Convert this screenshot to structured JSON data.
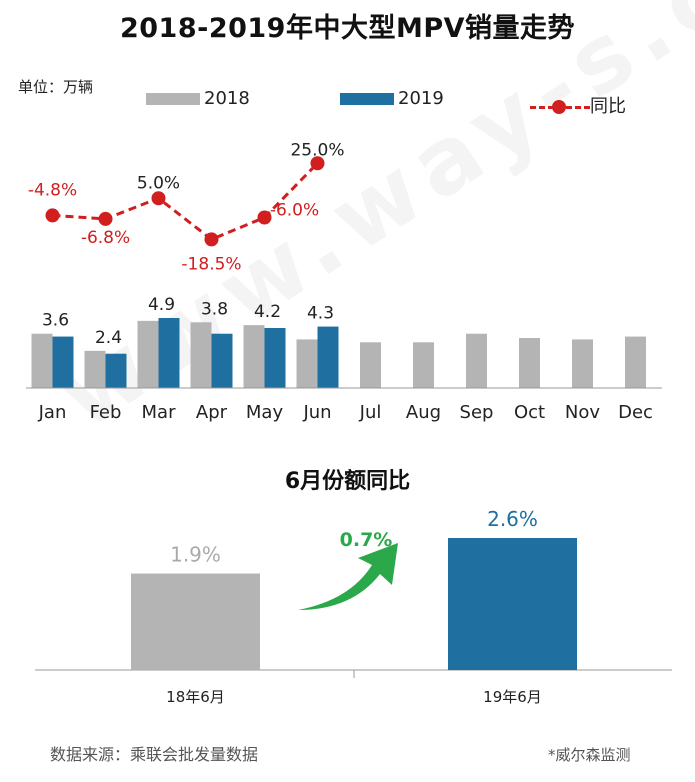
{
  "title": "2018-2019年中大型MPV销量走势",
  "unit_label": "单位：万辆",
  "legend": {
    "y2018": "2018",
    "y2019": "2019",
    "ratio": "同比"
  },
  "colors": {
    "y2018": "#b4b4b4",
    "y2019": "#1f6fa0",
    "ratio": "#d11e1e",
    "arrow": "#2aa84a",
    "axis": "#999999"
  },
  "watermark": "www.way-s.cn",
  "chart_data": [
    {
      "type": "bar",
      "categories": [
        "Jan",
        "Feb",
        "Mar",
        "Apr",
        "May",
        "Jun",
        "Jul",
        "Aug",
        "Sep",
        "Oct",
        "Nov",
        "Dec"
      ],
      "series": [
        {
          "name": "2018",
          "values": [
            3.8,
            2.6,
            4.7,
            4.6,
            4.4,
            3.4,
            3.2,
            3.2,
            3.8,
            3.5,
            3.4,
            3.6
          ]
        },
        {
          "name": "2019",
          "values": [
            3.6,
            2.4,
            4.9,
            3.8,
            4.2,
            4.3,
            null,
            null,
            null,
            null,
            null,
            null
          ]
        }
      ],
      "data_labels_2019": [
        "3.6",
        "2.4",
        "4.9",
        "3.8",
        "4.2",
        "4.3"
      ],
      "line_series": {
        "name": "同比",
        "values": [
          -4.8,
          -6.8,
          5.0,
          -18.5,
          -6.0,
          25.0
        ],
        "labels": [
          "-4.8%",
          "-6.8%",
          "5.0%",
          "-18.5%",
          "-6.0%",
          "25.0%"
        ]
      },
      "ylim": [
        0,
        5.5
      ],
      "y2lim": [
        -30,
        30
      ],
      "grid": false,
      "legend_position": "top"
    },
    {
      "type": "bar",
      "title": "6月份额同比",
      "categories": [
        "18年6月",
        "19年6月"
      ],
      "values": [
        1.9,
        2.6
      ],
      "labels": [
        "1.9%",
        "2.6%"
      ],
      "change_label": "0.7%",
      "ylim": [
        0,
        3.2
      ]
    }
  ],
  "footer": {
    "source": "数据来源：乘联会批发量数据",
    "credit": "*威尔森监测"
  }
}
